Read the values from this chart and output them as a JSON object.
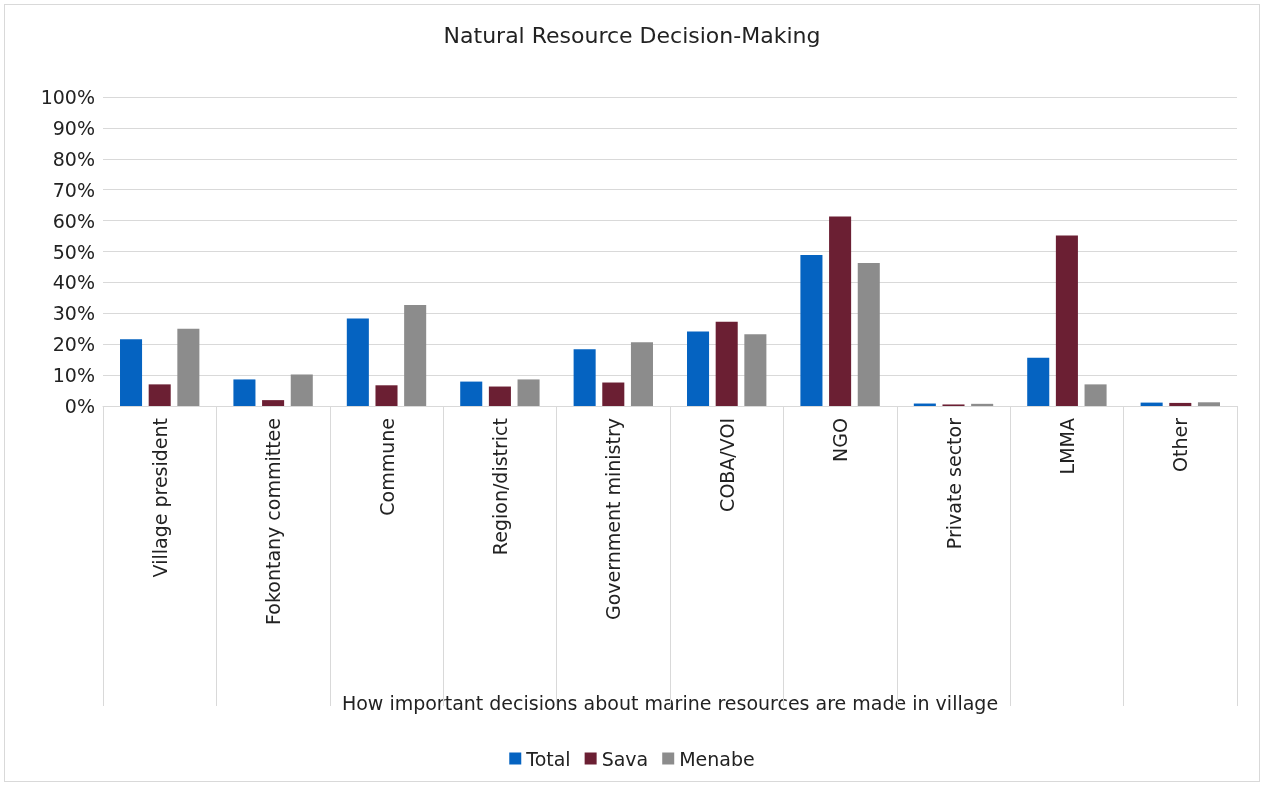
{
  "chart_data": {
    "type": "bar",
    "title": "Natural Resource Decision-Making",
    "xlabel": "How important decisions about marine resources are made in village",
    "categories": [
      "Village president",
      "Fokontany committee",
      "Commune",
      "Region/district",
      "Government ministry",
      "COBA/VOI",
      "NGO",
      "Private sector",
      "LMMA",
      "Other"
    ],
    "series": [
      {
        "name": "Total",
        "color": "#0563c1",
        "values": [
          21.6,
          8.6,
          28.3,
          7.9,
          18.4,
          24.1,
          48.9,
          0.8,
          15.6,
          1.1
        ]
      },
      {
        "name": "Sava",
        "color": "#6b1f33",
        "values": [
          7.0,
          1.9,
          6.7,
          6.3,
          7.6,
          27.3,
          61.3,
          0.5,
          55.2,
          1.0
        ]
      },
      {
        "name": "Menabe",
        "color": "#8c8c8c",
        "values": [
          25.0,
          10.2,
          32.7,
          8.6,
          20.6,
          23.2,
          46.3,
          0.7,
          7.0,
          1.2
        ]
      }
    ],
    "ylim": [
      0,
      100
    ],
    "yticks": [
      {
        "value": 0,
        "label": "0%"
      },
      {
        "value": 10,
        "label": "10%"
      },
      {
        "value": 20,
        "label": "20%"
      },
      {
        "value": 30,
        "label": "30%"
      },
      {
        "value": 40,
        "label": "40%"
      },
      {
        "value": 50,
        "label": "50%"
      },
      {
        "value": 60,
        "label": "60%"
      },
      {
        "value": 70,
        "label": "70%"
      },
      {
        "value": 80,
        "label": "80%"
      },
      {
        "value": 90,
        "label": "90%"
      },
      {
        "value": 100,
        "label": "100%"
      }
    ],
    "grid": "y",
    "legend": "bottom"
  }
}
